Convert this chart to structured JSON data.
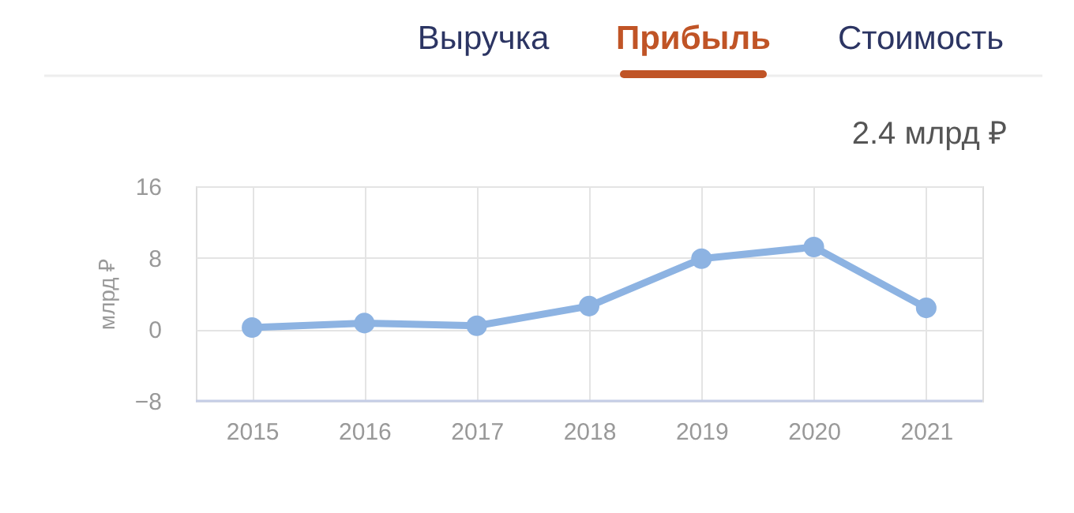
{
  "chart_data": {
    "type": "line",
    "title": "Прибыль",
    "annotations": [
      "Выручка",
      "Стоимость",
      "2.4 млрд ₽"
    ],
    "ylabel": "млрд ₽",
    "categories": [
      "2015",
      "2016",
      "2017",
      "2018",
      "2019",
      "2020",
      "2021"
    ],
    "series": [
      {
        "color": "#8db3e2",
        "values": [
          0.2,
          0.7,
          0.4,
          2.6,
          7.9,
          9.2,
          2.4
        ]
      }
    ],
    "ylim": [
      -8,
      16
    ],
    "yticks": [
      -8,
      0,
      8,
      16
    ],
    "grid": true,
    "marker": "circle",
    "line_style": "solid"
  }
}
